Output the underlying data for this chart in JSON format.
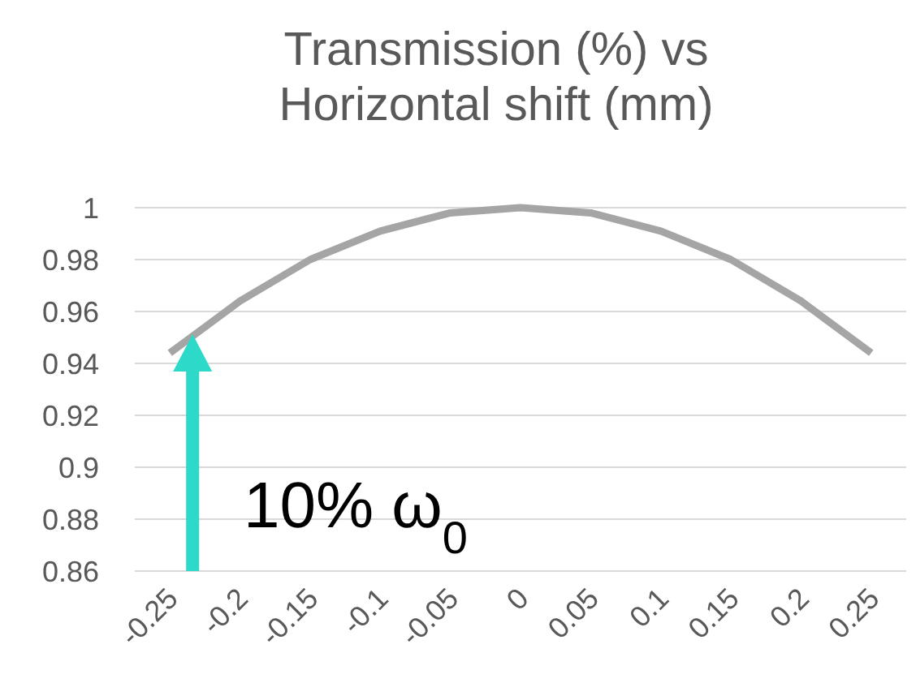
{
  "chart_data": {
    "type": "line",
    "title": "Transmission (%) vs Horizontal shift (mm)",
    "categories": [
      "-0.25",
      "-0.2",
      "-0.15",
      "-0.1",
      "-0.05",
      "0",
      "0.05",
      "0.1",
      "0.15",
      "0.2",
      "0.25"
    ],
    "series": [
      {
        "color": "#a5a5a5",
        "values": [
          0.944,
          0.964,
          0.98,
          0.991,
          0.998,
          1.0,
          0.998,
          0.991,
          0.98,
          0.964,
          0.944
        ]
      }
    ],
    "ylim": [
      0.86,
      1
    ],
    "yticks": [
      0.86,
      0.88,
      0.9,
      0.92,
      0.94,
      0.96,
      0.98,
      1
    ],
    "grid": "y",
    "marker": "none",
    "line_style": "solid",
    "annotations": [
      "10% ω$_{0}$"
    ]
  }
}
